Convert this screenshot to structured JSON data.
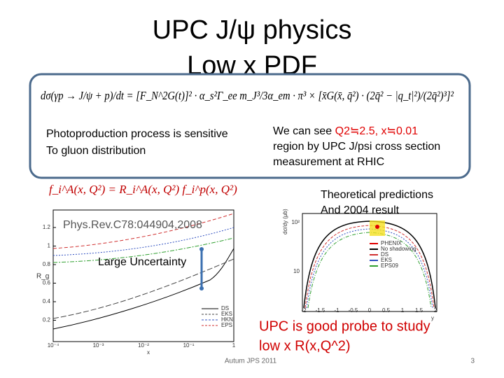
{
  "title": {
    "line1": "UPC J/ψ physics",
    "line2": "Low x PDF"
  },
  "box": {
    "formula": "dσ(γp → J/ψ + p)/dt = [F_N^2G(t)]² · α_s²Γ_ee m_J³/3α_em · π³ × [x̄G(x̄, q̄²) · (2q̄² − |q_t|²)/(2q̄²)³]²",
    "left_text": [
      "Photoproduction process is sensitive",
      "To gluon distribution"
    ],
    "right_text": {
      "prefix": "We can see ",
      "highlight": "Q2≒2.5, x≒0.01",
      "lines": [
        "region by UPC J/psi cross section",
        " measurement at RHIC"
      ]
    }
  },
  "formula2": "f_i^A(x, Q²) = R_i^A(x, Q²) f_i^p(x, Q²)",
  "left_plot": {
    "reference": "Phys.Rev.C78:044904,2008",
    "annotation": "Large Uncertainty",
    "y_label": "R_g",
    "x_label": "x",
    "yticks": [
      "1.2",
      "1",
      "0.8",
      "0.6",
      "0.4",
      "0.2"
    ],
    "xticks": [
      "10⁻⁴",
      "10⁻³",
      "10⁻²",
      "10⁻¹",
      "1"
    ],
    "legend": [
      "DS",
      "EKS",
      "HKN",
      "EPS"
    ]
  },
  "right_plot": {
    "caption": [
      "Theoretical predictions",
      "And 2004 result"
    ],
    "y_label": "dσ/dy (μb)",
    "x_label": "y",
    "yticks": [
      "10²",
      "10"
    ],
    "xticks": [
      "-2",
      "-1.5",
      "-1",
      "-0.5",
      "0",
      "0.5",
      "1",
      "1.5",
      "2"
    ],
    "legend": [
      "PHENIX",
      "No shadowing",
      "DS",
      "EKS",
      "EPS09"
    ]
  },
  "conclusion": [
    "UPC is good probe to study",
    "low x R(x,Q^2)"
  ],
  "footer": {
    "event": "Autum JPS 2011",
    "page": "3"
  }
}
